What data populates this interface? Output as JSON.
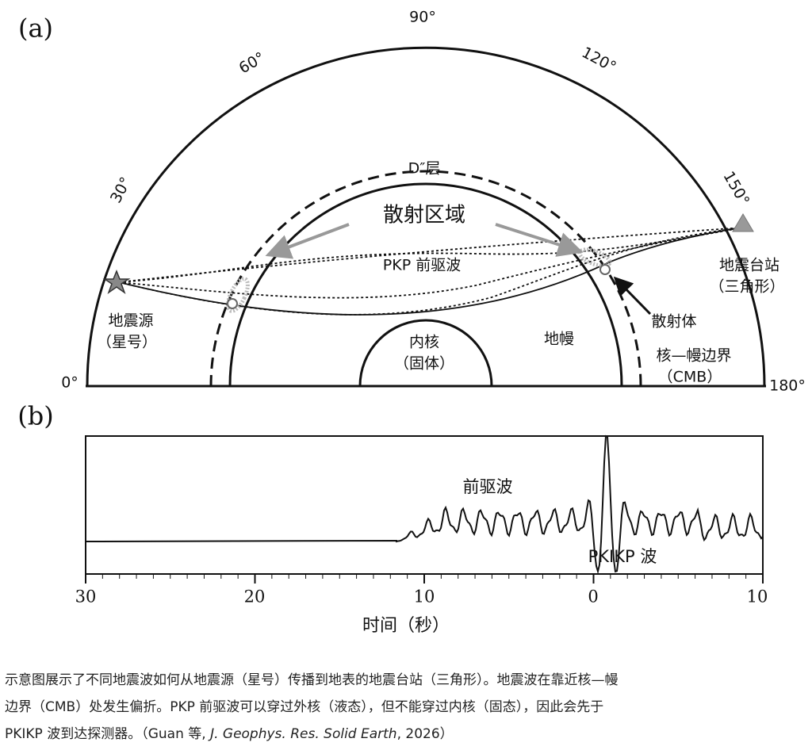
{
  "panel_a": {
    "label": "(a)",
    "angles": [
      "0°",
      "30°",
      "60°",
      "90°",
      "120°",
      "150°",
      "180°"
    ],
    "d_layer": "D″层",
    "scatter_region": "散射区域",
    "pkp": "PKP 前驱波",
    "source": [
      "地震源",
      "（星号）"
    ],
    "inner_core": [
      "内核",
      "（固体）"
    ],
    "mantle": "地幔",
    "station": [
      "地震台站",
      "（三角形）"
    ],
    "scatterer": "散射体",
    "cmb": [
      "核—幔边界",
      "（CMB）"
    ]
  },
  "panel_b": {
    "label": "(b)",
    "tick_labels": [
      "30",
      "20",
      "10",
      "0",
      "10"
    ],
    "xlabel": "时间（秒）",
    "precursor": "前驱波",
    "pkikp": "PKIKP 波"
  },
  "caption": {
    "lines": [
      "示意图展示了不同地震波如何从地震源（星号）传播到地表的地震台站（三角形）。地震波在靠近核—幔",
      "边界（CMB）处发生偏折。PKP 前驱波可以穿过外核（液态），但不能穿过内核（固态），因此会先于",
      "PKIKP 波到达探测器。（Guan 等, "
    ],
    "journal": "J. Geophys. Res. Solid Earth",
    "year": ", 2026）"
  }
}
